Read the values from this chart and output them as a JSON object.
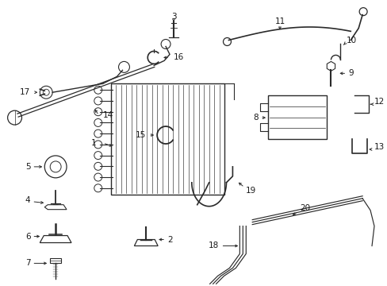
{
  "background_color": "#ffffff",
  "line_color": "#2a2a2a",
  "label_color": "#1a1a1a",
  "label_fontsize": 7.5,
  "fig_w": 4.89,
  "fig_h": 3.6,
  "dpi": 100
}
